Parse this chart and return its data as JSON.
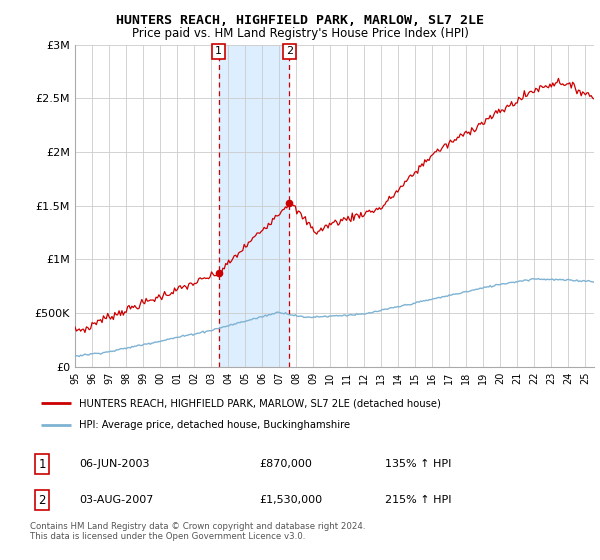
{
  "title": "HUNTERS REACH, HIGHFIELD PARK, MARLOW, SL7 2LE",
  "subtitle": "Price paid vs. HM Land Registry's House Price Index (HPI)",
  "legend_line1": "HUNTERS REACH, HIGHFIELD PARK, MARLOW, SL7 2LE (detached house)",
  "legend_line2": "HPI: Average price, detached house, Buckinghamshire",
  "transaction1_date": "06-JUN-2003",
  "transaction1_price": "£870,000",
  "transaction1_hpi": "135% ↑ HPI",
  "transaction2_date": "03-AUG-2007",
  "transaction2_price": "£1,530,000",
  "transaction2_hpi": "215% ↑ HPI",
  "copyright": "Contains HM Land Registry data © Crown copyright and database right 2024.\nThis data is licensed under the Open Government Licence v3.0.",
  "red_color": "#cc0000",
  "blue_color": "#7fb3d3",
  "highlight_color": "#ddeeff",
  "ylim": [
    0,
    3000000
  ],
  "xlim_start": 1995.0,
  "xlim_end": 2025.5,
  "transaction1_x": 2003.44,
  "transaction1_y": 870000,
  "transaction2_x": 2007.59,
  "transaction2_y": 1530000
}
